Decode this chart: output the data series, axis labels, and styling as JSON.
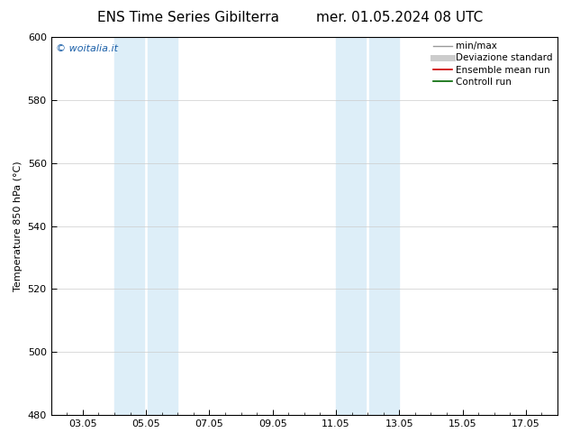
{
  "title_left": "ENS Time Series Gibilterra",
  "title_right": "mer. 01.05.2024 08 UTC",
  "ylabel": "Temperature 850 hPa (°C)",
  "xtick_labels": [
    "03.05",
    "05.05",
    "07.05",
    "09.05",
    "11.05",
    "13.05",
    "15.05",
    "17.05"
  ],
  "xtick_positions": [
    3,
    5,
    7,
    9,
    11,
    13,
    15,
    17
  ],
  "xlim": [
    2,
    18
  ],
  "ylim": [
    480,
    600
  ],
  "ytick_positions": [
    480,
    500,
    520,
    540,
    560,
    580,
    600
  ],
  "ytick_labels": [
    "480",
    "500",
    "520",
    "540",
    "560",
    "580",
    "600"
  ],
  "shaded_bands": [
    {
      "x_start": 4.0,
      "x_end": 4.95
    },
    {
      "x_start": 5.05,
      "x_end": 6.0
    },
    {
      "x_start": 11.0,
      "x_end": 11.95
    },
    {
      "x_start": 12.05,
      "x_end": 13.0
    }
  ],
  "shaded_color": "#ddeef8",
  "watermark_text": "© woitalia.it",
  "watermark_color": "#1a5fa8",
  "legend_entries": [
    {
      "label": "min/max",
      "color": "#999999",
      "lw": 1.0,
      "linestyle": "-"
    },
    {
      "label": "Deviazione standard",
      "color": "#cccccc",
      "lw": 5,
      "linestyle": "-"
    },
    {
      "label": "Ensemble mean run",
      "color": "#cc0000",
      "lw": 1.2,
      "linestyle": "-"
    },
    {
      "label": "Controll run",
      "color": "#006600",
      "lw": 1.2,
      "linestyle": "-"
    }
  ],
  "background_color": "#ffffff",
  "title_fontsize": 11,
  "axis_label_fontsize": 8,
  "tick_fontsize": 8,
  "legend_fontsize": 7.5,
  "watermark_fontsize": 8
}
